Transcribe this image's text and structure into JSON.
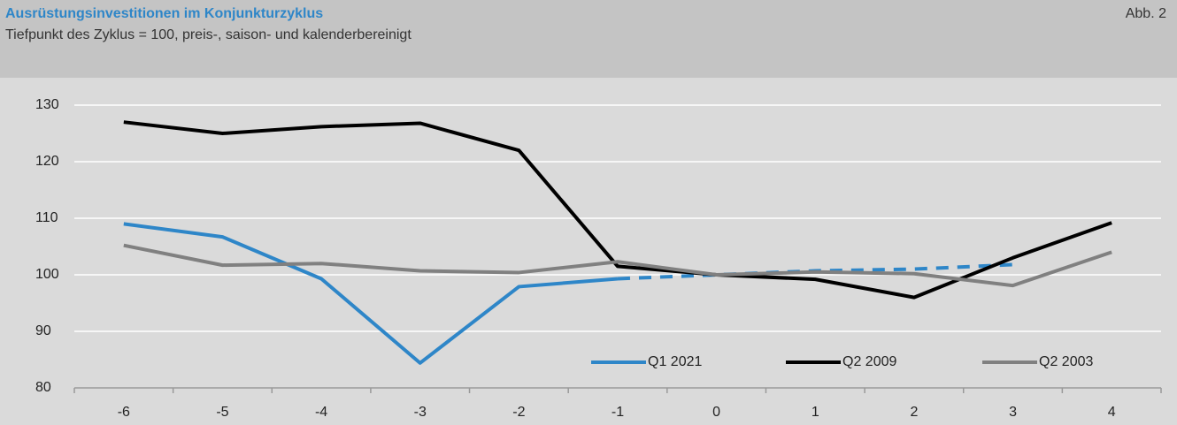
{
  "chart_data": {
    "type": "line",
    "title": "Ausrüstungsinvestitionen im Konjunkturzyklus",
    "subtitle": "Tiefpunkt des Zyklus = 100, preis-, saison- und kalenderbereinigt",
    "figure_label": "Abb. 2",
    "categories": [
      "-6",
      "-5",
      "-4",
      "-3",
      "-2",
      "-1",
      "0",
      "1",
      "2",
      "3",
      "4"
    ],
    "series": [
      {
        "name": "Q1 2021",
        "color": "#2e86c8",
        "dashed_from": "-1",
        "values": [
          109,
          106.7,
          99.3,
          84.4,
          97.9,
          99.3,
          100,
          100.7,
          101,
          101.8,
          null
        ]
      },
      {
        "name": "Q2 2009",
        "color": "#000000",
        "values": [
          127,
          125,
          126.2,
          126.8,
          122,
          101.5,
          100,
          99.2,
          96,
          103,
          109.2
        ]
      },
      {
        "name": "Q2 2003",
        "color": "#808080",
        "values": [
          105.2,
          101.7,
          102,
          100.7,
          100.4,
          102.3,
          100,
          100.5,
          100.2,
          98.1,
          104
        ]
      }
    ],
    "ylim": [
      80,
      130
    ],
    "yticks": [
      80,
      90,
      100,
      110,
      120,
      130
    ],
    "grid": true,
    "legend": "bottom-right"
  }
}
